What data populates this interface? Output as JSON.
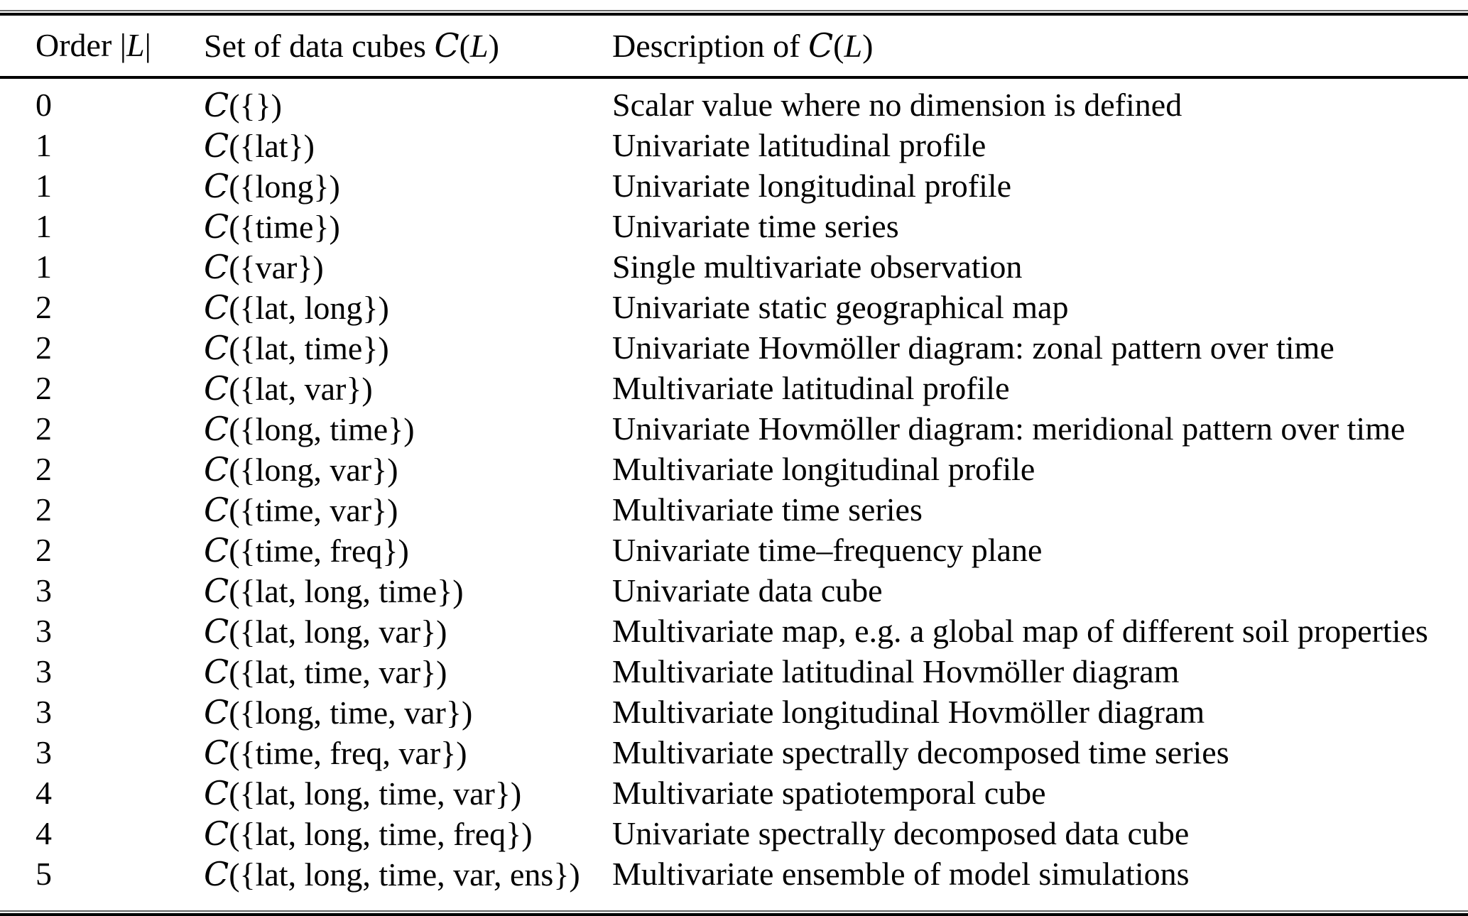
{
  "symbols": {
    "cal_c": "C",
    "var_l": "L"
  },
  "header": {
    "col1": {
      "pre": "Order ",
      "bar1": "|",
      "var": "L",
      "bar2": "|"
    },
    "col2": {
      "pre": "Set of data cubes ",
      "cal": "C",
      "open": "(",
      "var": "L",
      "close": ")"
    },
    "col3": {
      "pre": "Description of ",
      "cal": "C",
      "open": "(",
      "var": "L",
      "close": ")"
    }
  },
  "rows": [
    {
      "order": "0",
      "cube": "({})",
      "desc": "Scalar value where no dimension is defined"
    },
    {
      "order": "1",
      "cube": "({lat})",
      "desc": "Univariate latitudinal profile"
    },
    {
      "order": "1",
      "cube": "({long})",
      "desc": "Univariate longitudinal profile"
    },
    {
      "order": "1",
      "cube": "({time})",
      "desc": "Univariate time series"
    },
    {
      "order": "1",
      "cube": "({var})",
      "desc": "Single multivariate observation"
    },
    {
      "order": "2",
      "cube": "({lat, long})",
      "desc": "Univariate static geographical map"
    },
    {
      "order": "2",
      "cube": "({lat, time})",
      "desc": "Univariate Hovmöller diagram: zonal pattern over time"
    },
    {
      "order": "2",
      "cube": "({lat, var})",
      "desc": "Multivariate latitudinal profile"
    },
    {
      "order": "2",
      "cube": "({long, time})",
      "desc": "Univariate Hovmöller diagram: meridional pattern over time"
    },
    {
      "order": "2",
      "cube": "({long, var})",
      "desc": "Multivariate longitudinal profile"
    },
    {
      "order": "2",
      "cube": "({time, var})",
      "desc": "Multivariate time series"
    },
    {
      "order": "2",
      "cube": "({time, freq})",
      "desc": "Univariate time–frequency plane"
    },
    {
      "order": "3",
      "cube": "({lat, long, time})",
      "desc": "Univariate data cube"
    },
    {
      "order": "3",
      "cube": "({lat, long, var})",
      "desc": "Multivariate map, e.g. a global map of different soil properties"
    },
    {
      "order": "3",
      "cube": "({lat, time, var})",
      "desc": "Multivariate latitudinal Hovmöller diagram"
    },
    {
      "order": "3",
      "cube": "({long, time, var})",
      "desc": "Multivariate longitudinal Hovmöller diagram"
    },
    {
      "order": "3",
      "cube": "({time, freq, var})",
      "desc": "Multivariate spectrally decomposed time series"
    },
    {
      "order": "4",
      "cube": "({lat, long, time, var})",
      "desc": "Multivariate spatiotemporal cube"
    },
    {
      "order": "4",
      "cube": "({lat, long, time, freq})",
      "desc": "Univariate spectrally decomposed data cube"
    },
    {
      "order": "5",
      "cube": "({lat, long, time, var, ens})",
      "desc": "Multivariate ensemble of model simulations"
    }
  ]
}
